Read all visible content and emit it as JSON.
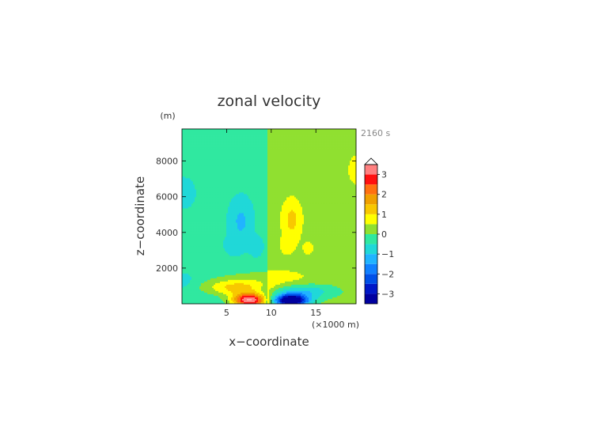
{
  "chart_data": {
    "type": "heatmap",
    "title": "zonal velocity",
    "xlabel": "x−coordinate",
    "ylabel": "z−coordinate",
    "xunit": "(×1000 m)",
    "yunit": "(m)",
    "time_label": "2160 s",
    "xlim": [
      0,
      19.5
    ],
    "ylim": [
      0,
      9800
    ],
    "x_ticks": [
      {
        "value": 5,
        "label": "5"
      },
      {
        "value": 10,
        "label": "10"
      },
      {
        "value": 15,
        "label": "15"
      }
    ],
    "y_ticks": [
      {
        "value": 2000,
        "label": "2000"
      },
      {
        "value": 4000,
        "label": "4000"
      },
      {
        "value": 6000,
        "label": "6000"
      },
      {
        "value": 8000,
        "label": "8000"
      }
    ],
    "colorbar": {
      "levels": [
        -3.5,
        -3,
        -2.5,
        -2,
        -1.5,
        -1,
        -0.5,
        0,
        0.5,
        1,
        1.5,
        2,
        2.5,
        3,
        3.5
      ],
      "colors": [
        "#0000a0",
        "#0018c8",
        "#0050e8",
        "#1080ff",
        "#20b4ff",
        "#20d8d8",
        "#30e8a0",
        "#90e030",
        "#ffff00",
        "#f8c800",
        "#f0a000",
        "#ff7010",
        "#ff1010",
        "#ff8080",
        "#ffb0b0"
      ],
      "ticks": [
        {
          "value": 3,
          "label": "3"
        },
        {
          "value": 2,
          "label": "2"
        },
        {
          "value": 1,
          "label": "1"
        },
        {
          "value": 0,
          "label": "0"
        },
        {
          "value": -1,
          "label": "−1"
        },
        {
          "value": -2,
          "label": "−2"
        },
        {
          "value": -3,
          "label": "−3"
        }
      ],
      "overflow_color": "#ffffff"
    },
    "field": {
      "background_left": -0.4,
      "background_right": 0.2,
      "mountain_center_x": 9.6,
      "features": [
        {
          "description": "left-negative lobe",
          "x": 6.8,
          "z": 4300,
          "peak": -1.1
        },
        {
          "description": "right-positive lobe",
          "x": 12.4,
          "z": 4200,
          "peak": 1.1
        },
        {
          "description": "near-surface positive jet",
          "x": 7.5,
          "z": 300,
          "peak": 3.3
        },
        {
          "description": "near-surface negative jet",
          "x": 12.3,
          "z": 250,
          "peak": -3.6
        }
      ]
    }
  }
}
